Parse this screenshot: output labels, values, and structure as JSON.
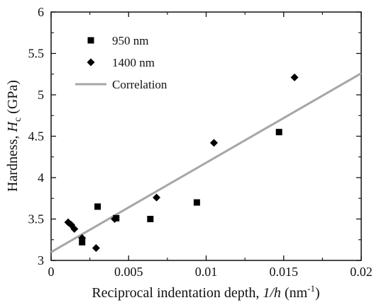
{
  "chart_data": {
    "type": "scatter",
    "xlabel": {
      "text": "Reciprocal indentation depth, ",
      "var": "1/h",
      "unit_open": " (nm",
      "unit_sup": "-1",
      "unit_close": ")"
    },
    "ylabel": {
      "text": "Hardness, ",
      "var": "H",
      "sub": "c",
      "unit": " (GPa)"
    },
    "xlim": [
      0,
      0.02
    ],
    "ylim": [
      3,
      6
    ],
    "xticks": [
      0,
      0.005,
      0.01,
      0.015,
      0.02
    ],
    "xtick_labels": [
      "0",
      "0.005",
      "0.01",
      "0.015",
      "0.02"
    ],
    "yticks": [
      3,
      3.5,
      4,
      4.5,
      5,
      5.5,
      6
    ],
    "ytick_labels": [
      "3",
      "3.5",
      "4",
      "4.5",
      "5",
      "5.5",
      "6"
    ],
    "grid": false,
    "legend_position": "top-left",
    "series": [
      {
        "name": "950 nm",
        "marker": "square",
        "color": "#000000",
        "points": [
          {
            "x": 0.002,
            "y": 3.22
          },
          {
            "x": 0.003,
            "y": 3.65
          },
          {
            "x": 0.0042,
            "y": 3.51
          },
          {
            "x": 0.0064,
            "y": 3.5
          },
          {
            "x": 0.0094,
            "y": 3.7
          },
          {
            "x": 0.0147,
            "y": 4.55
          }
        ]
      },
      {
        "name": "1400 nm",
        "marker": "diamond",
        "color": "#000000",
        "points": [
          {
            "x": 0.0011,
            "y": 3.46
          },
          {
            "x": 0.0013,
            "y": 3.43
          },
          {
            "x": 0.0015,
            "y": 3.38
          },
          {
            "x": 0.002,
            "y": 3.27
          },
          {
            "x": 0.0029,
            "y": 3.15
          },
          {
            "x": 0.0041,
            "y": 3.5
          },
          {
            "x": 0.0068,
            "y": 3.76
          },
          {
            "x": 0.0105,
            "y": 4.42
          },
          {
            "x": 0.0157,
            "y": 5.21
          }
        ]
      },
      {
        "name": "Correlation",
        "kind": "line",
        "color": "#a6a6a6",
        "points": [
          {
            "x": 0,
            "y": 3.1
          },
          {
            "x": 0.02,
            "y": 5.26
          }
        ]
      }
    ]
  }
}
